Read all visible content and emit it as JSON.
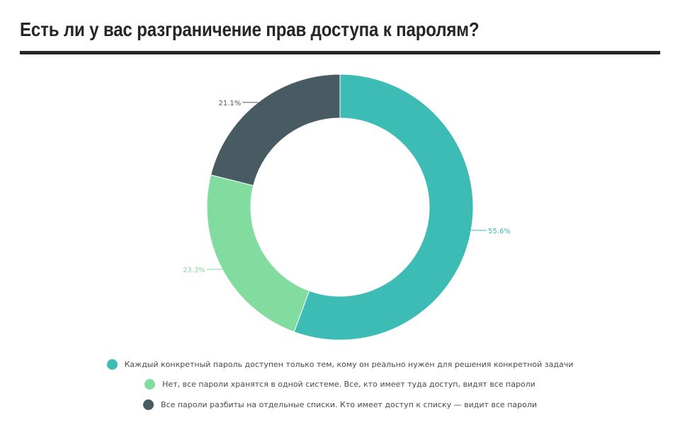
{
  "title": "Есть ли у вас разграничение прав доступа к паролям?",
  "chart_data": {
    "type": "pie",
    "donut": true,
    "slices": [
      {
        "label": "Каждый конкретный пароль доступен только тем, кому он реально нужен для решения конкретной задачи",
        "value": 55.6,
        "value_label": "55.6%",
        "color": "#3dbbb5"
      },
      {
        "label": "Нет, все пароли хранятся в одной системе. Все, кто имеет туда доступ, видят все пароли",
        "value": 23.3,
        "value_label": "23.3%",
        "color": "#82dca0"
      },
      {
        "label": "Все пароли разбиты на отдельные списки. Кто имеет доступ к списку — видит все пароли",
        "value": 21.1,
        "value_label": "21.1%",
        "color": "#485a62"
      }
    ],
    "legend_position": "bottom",
    "start_angle": "top",
    "direction": "clockwise"
  }
}
